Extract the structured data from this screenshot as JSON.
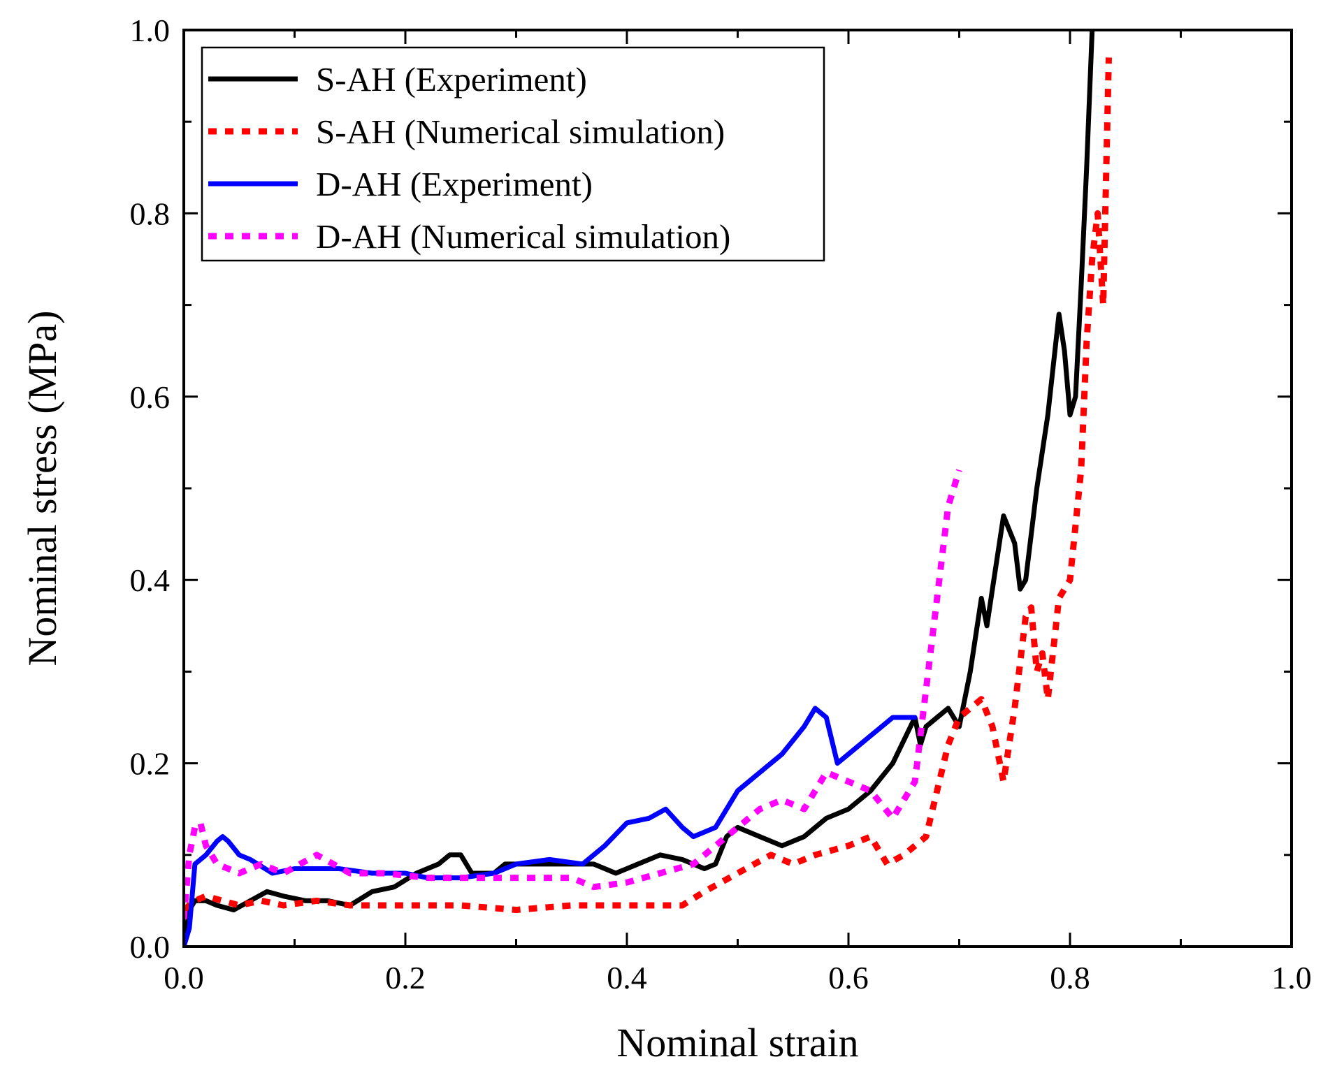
{
  "chart_data": {
    "type": "line",
    "title": "",
    "xlabel": "Nominal strain",
    "ylabel": "Nominal stress (MPa)",
    "xlim": [
      0.0,
      1.0
    ],
    "ylim": [
      0.0,
      1.0
    ],
    "xticks": [
      "0.0",
      "0.2",
      "0.4",
      "0.6",
      "0.8",
      "1.0"
    ],
    "yticks": [
      "0.0",
      "0.2",
      "0.4",
      "0.6",
      "0.8",
      "1.0"
    ],
    "grid": false,
    "legend_position": "top-left",
    "series": [
      {
        "name": "S-AH (Experiment)",
        "color": "#000000",
        "style": "solid",
        "x": [
          0.0,
          0.005,
          0.01,
          0.02,
          0.03,
          0.045,
          0.06,
          0.075,
          0.09,
          0.11,
          0.13,
          0.15,
          0.17,
          0.19,
          0.21,
          0.23,
          0.24,
          0.25,
          0.26,
          0.28,
          0.29,
          0.31,
          0.33,
          0.35,
          0.37,
          0.39,
          0.41,
          0.43,
          0.45,
          0.47,
          0.48,
          0.49,
          0.5,
          0.52,
          0.54,
          0.56,
          0.58,
          0.6,
          0.62,
          0.64,
          0.66,
          0.665,
          0.67,
          0.68,
          0.69,
          0.7,
          0.71,
          0.72,
          0.725,
          0.73,
          0.74,
          0.75,
          0.755,
          0.76,
          0.77,
          0.78,
          0.79,
          0.795,
          0.8,
          0.805,
          0.81,
          0.815,
          0.82
        ],
        "y": [
          0.0,
          0.04,
          0.05,
          0.05,
          0.045,
          0.04,
          0.05,
          0.06,
          0.055,
          0.05,
          0.05,
          0.045,
          0.06,
          0.065,
          0.08,
          0.09,
          0.1,
          0.1,
          0.08,
          0.08,
          0.09,
          0.09,
          0.09,
          0.09,
          0.09,
          0.08,
          0.09,
          0.1,
          0.095,
          0.085,
          0.09,
          0.12,
          0.13,
          0.12,
          0.11,
          0.12,
          0.14,
          0.15,
          0.17,
          0.2,
          0.25,
          0.22,
          0.24,
          0.25,
          0.26,
          0.24,
          0.3,
          0.38,
          0.35,
          0.39,
          0.47,
          0.44,
          0.39,
          0.4,
          0.5,
          0.58,
          0.69,
          0.65,
          0.58,
          0.6,
          0.72,
          0.85,
          1.0
        ]
      },
      {
        "name": "S-AH (Numerical simulation)",
        "color": "#ff0000",
        "style": "dotted",
        "x": [
          0.0,
          0.01,
          0.02,
          0.035,
          0.05,
          0.07,
          0.09,
          0.12,
          0.15,
          0.2,
          0.25,
          0.3,
          0.35,
          0.4,
          0.45,
          0.47,
          0.5,
          0.53,
          0.55,
          0.57,
          0.6,
          0.62,
          0.635,
          0.65,
          0.67,
          0.68,
          0.69,
          0.7,
          0.71,
          0.72,
          0.73,
          0.74,
          0.75,
          0.76,
          0.765,
          0.77,
          0.775,
          0.78,
          0.79,
          0.8,
          0.81,
          0.815,
          0.82,
          0.825,
          0.83,
          0.835
        ],
        "y": [
          0.04,
          0.05,
          0.055,
          0.05,
          0.045,
          0.05,
          0.045,
          0.05,
          0.045,
          0.045,
          0.045,
          0.04,
          0.045,
          0.045,
          0.045,
          0.06,
          0.08,
          0.1,
          0.09,
          0.1,
          0.11,
          0.12,
          0.09,
          0.1,
          0.12,
          0.17,
          0.22,
          0.25,
          0.26,
          0.27,
          0.24,
          0.18,
          0.26,
          0.36,
          0.37,
          0.3,
          0.32,
          0.27,
          0.38,
          0.4,
          0.52,
          0.66,
          0.75,
          0.8,
          0.7,
          0.97
        ]
      },
      {
        "name": "D-AH (Experiment)",
        "color": "#0000ff",
        "style": "solid",
        "x": [
          0.0,
          0.005,
          0.01,
          0.02,
          0.03,
          0.035,
          0.04,
          0.05,
          0.06,
          0.08,
          0.1,
          0.12,
          0.14,
          0.17,
          0.2,
          0.22,
          0.25,
          0.28,
          0.3,
          0.33,
          0.36,
          0.38,
          0.4,
          0.42,
          0.435,
          0.45,
          0.46,
          0.48,
          0.5,
          0.52,
          0.54,
          0.56,
          0.57,
          0.58,
          0.59,
          0.6,
          0.62,
          0.64,
          0.66
        ],
        "y": [
          0.0,
          0.02,
          0.09,
          0.1,
          0.115,
          0.12,
          0.115,
          0.1,
          0.095,
          0.08,
          0.085,
          0.085,
          0.085,
          0.08,
          0.08,
          0.075,
          0.075,
          0.08,
          0.09,
          0.095,
          0.09,
          0.11,
          0.135,
          0.14,
          0.15,
          0.13,
          0.12,
          0.13,
          0.17,
          0.19,
          0.21,
          0.24,
          0.26,
          0.25,
          0.2,
          0.21,
          0.23,
          0.25,
          0.25
        ]
      },
      {
        "name": "D-AH (Numerical simulation)",
        "color": "#ff00ff",
        "style": "dotted",
        "x": [
          0.0,
          0.005,
          0.01,
          0.015,
          0.02,
          0.03,
          0.05,
          0.07,
          0.09,
          0.12,
          0.15,
          0.18,
          0.22,
          0.25,
          0.3,
          0.35,
          0.37,
          0.4,
          0.43,
          0.46,
          0.48,
          0.5,
          0.52,
          0.54,
          0.56,
          0.58,
          0.6,
          0.62,
          0.64,
          0.66,
          0.68,
          0.69,
          0.695,
          0.7
        ],
        "y": [
          0.03,
          0.1,
          0.13,
          0.135,
          0.11,
          0.09,
          0.08,
          0.09,
          0.08,
          0.1,
          0.08,
          0.08,
          0.075,
          0.075,
          0.075,
          0.075,
          0.065,
          0.07,
          0.08,
          0.09,
          0.11,
          0.13,
          0.15,
          0.16,
          0.15,
          0.19,
          0.18,
          0.17,
          0.14,
          0.18,
          0.38,
          0.48,
          0.5,
          0.52
        ]
      }
    ]
  }
}
